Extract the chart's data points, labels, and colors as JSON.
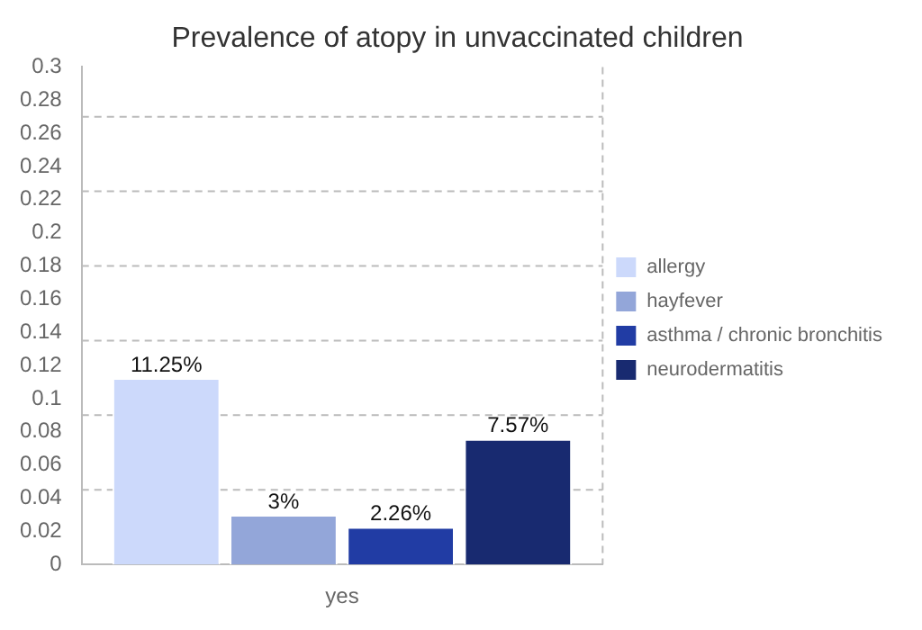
{
  "chart_data": {
    "type": "bar",
    "title": "Prevalence of atopy in unvaccinated children",
    "categories": [
      "yes"
    ],
    "series": [
      {
        "name": "allergy",
        "color": "#ccd9fb",
        "values": [
          0.1125
        ],
        "value_labels": [
          "11.25%"
        ]
      },
      {
        "name": "hayfever",
        "color": "#93a6d9",
        "values": [
          0.03
        ],
        "value_labels": [
          "3%"
        ]
      },
      {
        "name": "asthma / chronic bronchitis",
        "color": "#213ca4",
        "values": [
          0.0226
        ],
        "value_labels": [
          "2.26%"
        ]
      },
      {
        "name": "neurodermatitis",
        "color": "#182a70",
        "values": [
          0.0757
        ],
        "value_labels": [
          "7.57%"
        ]
      }
    ],
    "ylim": [
      0,
      0.3
    ],
    "yticks": [
      0,
      0.02,
      0.04,
      0.06,
      0.08,
      0.1,
      0.12,
      0.14,
      0.16,
      0.18,
      0.2,
      0.22,
      0.24,
      0.26,
      0.28,
      0.3
    ],
    "ref_lines": [
      {
        "axis": "y",
        "value": 0.045,
        "color": "#bbbbbb",
        "line_style": "dashed"
      },
      {
        "axis": "y",
        "value": 0.09,
        "color": "#bbbbbb",
        "line_style": "dashed"
      },
      {
        "axis": "y",
        "value": 0.135,
        "color": "#bbbbbb",
        "line_style": "dashed"
      },
      {
        "axis": "y",
        "value": 0.18,
        "color": "#bbbbbb",
        "line_style": "dashed"
      },
      {
        "axis": "y",
        "value": 0.225,
        "color": "#bbbbbb",
        "line_style": "dashed"
      },
      {
        "axis": "y",
        "value": 0.27,
        "color": "#bbbbbb",
        "line_style": "dashed"
      }
    ],
    "legend": "right"
  }
}
